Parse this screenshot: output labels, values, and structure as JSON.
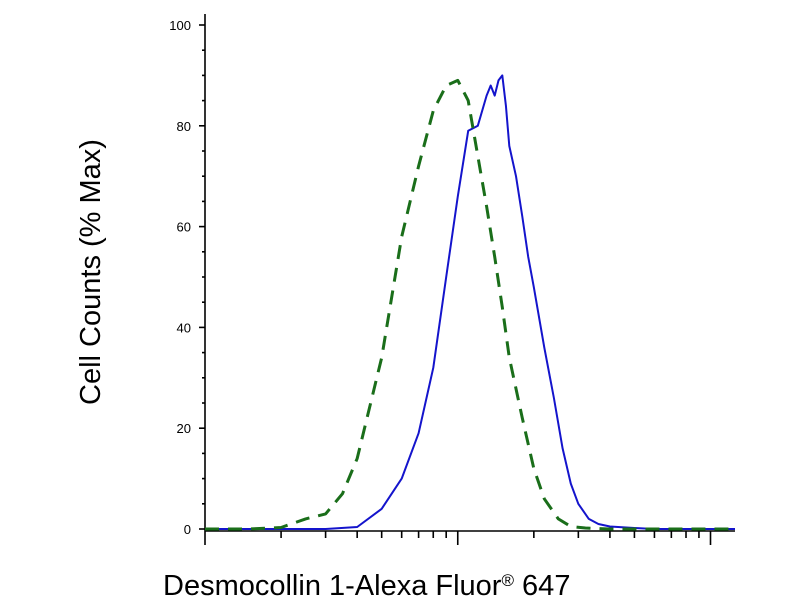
{
  "chart_data": {
    "type": "line",
    "title": "",
    "xlabel": "Desmocollin 1-Alexa Fluor",
    "xlabel_superscript": "®",
    "xlabel_suffix": " 647",
    "ylabel": "Cell Counts (% Max)",
    "x_scale": "log",
    "xlim": [
      0.1,
      12.5
    ],
    "ylim": [
      0,
      100
    ],
    "y_ticks": [
      0,
      20,
      40,
      60,
      80,
      100
    ],
    "y_tick_labels": [
      "0",
      "20",
      "40",
      "60",
      "80",
      "100"
    ],
    "grid": false,
    "legend": false,
    "series": [
      {
        "color": "#1414cc",
        "dash": "solid",
        "x": [
          0.1,
          0.2,
          0.3,
          0.4,
          0.5,
          0.6,
          0.7,
          0.8,
          0.9,
          1.0,
          1.1,
          1.2,
          1.3,
          1.35,
          1.4,
          1.45,
          1.5,
          1.55,
          1.6,
          1.7,
          1.8,
          1.9,
          2.0,
          2.2,
          2.4,
          2.6,
          2.8,
          3.0,
          3.3,
          3.6,
          4.0,
          5.0,
          6.0,
          8.0,
          12.5
        ],
        "y": [
          0,
          0,
          0,
          0.4,
          4,
          10,
          19,
          32,
          50,
          66,
          79,
          80,
          86,
          88,
          86,
          89,
          90,
          84,
          76,
          70,
          62,
          54,
          48,
          36,
          26,
          16,
          9,
          5,
          2,
          1,
          0.5,
          0.2,
          0,
          0,
          0
        ]
      },
      {
        "color": "#1a6e1a",
        "dash": "dashed",
        "x": [
          0.1,
          0.15,
          0.2,
          0.25,
          0.3,
          0.35,
          0.4,
          0.5,
          0.6,
          0.7,
          0.8,
          0.9,
          1.0,
          1.1,
          1.2,
          1.3,
          1.4,
          1.5,
          1.6,
          1.8,
          2.0,
          2.2,
          2.5,
          2.8,
          3.2,
          4.0,
          5.0,
          8.0,
          12.5
        ],
        "y": [
          0,
          0,
          0.3,
          2,
          3,
          7,
          14,
          34,
          58,
          72,
          83,
          88,
          89,
          85,
          74,
          64,
          54,
          44,
          34,
          22,
          12,
          6,
          2,
          0.5,
          0.2,
          0,
          0,
          0,
          0
        ]
      }
    ]
  }
}
